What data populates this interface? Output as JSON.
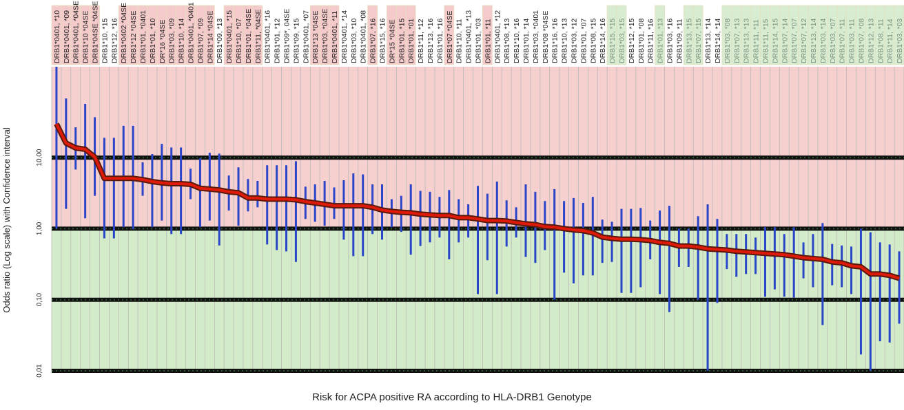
{
  "chart_data": {
    "type": "line",
    "xlabel": "Risk for ACPA positive RA according to HLA-DRB1 Genotype",
    "ylabel": "Odds ratio (Log scale)  with Confidence interval",
    "log_y": true,
    "ylim": [
      0.01,
      190
    ],
    "yticks": [
      {
        "value": 0.01,
        "label": "0,01"
      },
      {
        "value": 0.1,
        "label": "0,10"
      },
      {
        "value": 1,
        "label": "1,00"
      },
      {
        "value": 10,
        "label": "10,00"
      }
    ],
    "grid": true,
    "line_color": "#e01a0a",
    "line_outline_color": "#5a1a0a",
    "ci_color": "#2a45c8",
    "risk_color": "#f6cfcf",
    "protective_color": "#d3ebc8",
    "categories": [
      "DRB1*0401, *10",
      "DRB1*0401, *09",
      "DRB1*0401, *04SE",
      "DRB1*10 *04SE",
      "DRB1*04SE *04SE",
      "DRB1*10, *15",
      "DRB1*12, *16",
      "DRB1*0402 *04SE",
      "DRB1*12 *04SE",
      "DRB1*01, *0401",
      "DRB1*01, *10",
      "DR*16 *04SE",
      "DRB1*03, *09",
      "DRB1*10, *14",
      "DRB1*0401, *0401",
      "DRB1*07, *09",
      "DRB1*14 *04SE",
      "DRB1*09, *13",
      "DRB1*0401, *15",
      "DRB1*10, *07",
      "DRB1*01, *04SE",
      "DRB1*11, *04SE",
      "DRB1*0401, *16",
      "DRB1*01, *12",
      "DRB1*09*, 04SE",
      "DRB1*09, *15",
      "DRB1*0401, *07",
      "DRB1*13 *04SE",
      "DRB1*03, *04SE",
      "DRB1*0401, *11",
      "DRB1*0401, *14",
      "DRB1*03, *10",
      "DRB1*0401, *08",
      "DRB1*07, *16",
      "DRB1*15, *16",
      "DR*15 *04SE",
      "DRB1*01, *15",
      "DRB1*01, *01",
      "DRB1*11, *12",
      "DRB1*13, *16",
      "DRB1*01, *16",
      "DRB1*07 *04SE",
      "DRB1*10, *11",
      "DRB1*0401, *13",
      "DRB1*01, *03",
      "DRB1*01, *11",
      "DRB1*0401, *12",
      "DRB1*08, *13",
      "DRB1*10, *16",
      "DRB1*01, *14",
      "DRB1*03, *0401",
      "DRB1*08 *04SE",
      "DRB1*16, *16",
      "DRB1*10, *13",
      "DRB1*03, *12",
      "DRB1*01, *07",
      "DRB1*08, *15",
      "DRB1*14, *16",
      "DRB1*15, *15",
      "DRB1*03, *15",
      "DRB1*12, *15",
      "DRB1*01, *08",
      "DRB1*11, *16",
      "DRB1*01, *13",
      "DRB1*03, *16",
      "DRB1*09, *11",
      "DRB1*13, *15",
      "DRB1*07, *15",
      "DRB1*13, *14",
      "DRB1*14, *14",
      "DRB1*03, *08",
      "DRB1*07, *13",
      "DRB1*13, *13",
      "DRB1*11, *11",
      "DRB1*11, *15",
      "DRB1*14, *15",
      "DRB1*07, *14",
      "DRB1*07, *07",
      "DRB1*07, *12",
      "DRB1*13, *14",
      "DRB1*03, *14",
      "DRB1*03, *07",
      "DRB1*07, *11",
      "DRB1*03, *11",
      "DRB1*07, *08",
      "DRB1*12, *13",
      "DRB1*08, *11",
      "DRB1*11, *14",
      "DRB1*03, *03"
    ],
    "values": [
      29.9,
      16,
      13.7,
      13.1,
      10.2,
      5.1,
      5.1,
      5.1,
      5.1,
      4.9,
      4.6,
      4.4,
      4.3,
      4.3,
      4.2,
      3.7,
      3.6,
      3.5,
      3.3,
      3.2,
      2.7,
      2.7,
      2.6,
      2.6,
      2.6,
      2.55,
      2.4,
      2.3,
      2.2,
      2.1,
      2.1,
      2.1,
      2.1,
      2.0,
      1.83,
      1.75,
      1.7,
      1.67,
      1.6,
      1.56,
      1.53,
      1.53,
      1.43,
      1.43,
      1.37,
      1.3,
      1.3,
      1.28,
      1.22,
      1.17,
      1.14,
      1.07,
      1.05,
      1.0,
      0.96,
      0.94,
      0.87,
      0.76,
      0.73,
      0.71,
      0.71,
      0.7,
      0.68,
      0.64,
      0.62,
      0.57,
      0.57,
      0.55,
      0.52,
      0.51,
      0.5,
      0.48,
      0.47,
      0.46,
      0.45,
      0.44,
      0.43,
      0.41,
      0.39,
      0.38,
      0.37,
      0.34,
      0.33,
      0.3,
      0.29,
      0.23,
      0.23,
      0.22,
      0.2
    ],
    "ci_upper": [
      190,
      68,
      26.7,
      57,
      37,
      19,
      19,
      28,
      28,
      8.6,
      11.2,
      15.6,
      13.9,
      13.9,
      7.0,
      9.8,
      11.7,
      11.4,
      5.6,
      7.3,
      5.0,
      4.7,
      7.8,
      7.8,
      7.8,
      8.9,
      3.9,
      4.2,
      4.7,
      3.8,
      4.8,
      6.0,
      5.8,
      4.2,
      4.2,
      2.6,
      2.9,
      4.2,
      3.4,
      3.3,
      2.8,
      3.5,
      2.6,
      2.2,
      4.0,
      3.1,
      4.6,
      2.5,
      2.0,
      4.2,
      3.3,
      2.45,
      3.6,
      2.45,
      2.7,
      2.3,
      2.8,
      1.34,
      1.25,
      1.9,
      1.9,
      1.95,
      1.3,
      1.8,
      2.1,
      1.0,
      1.0,
      1.5,
      2.2,
      1.37,
      0.84,
      0.84,
      0.84,
      0.75,
      1.05,
      1.05,
      0.84,
      1.05,
      0.64,
      0.84,
      1.2,
      0.61,
      0.58,
      0.56,
      1.0,
      0.89,
      0.64,
      0.6,
      0.48
    ],
    "ci_lower": [
      1.0,
      1.9,
      6.8,
      1.4,
      2.9,
      0.73,
      0.73,
      1.05,
      0.98,
      2.9,
      1.05,
      1.3,
      0.84,
      0.84,
      2.6,
      1.05,
      1.3,
      0.58,
      1.8,
      1.1,
      1.75,
      2.0,
      0.6,
      0.5,
      0.48,
      0.34,
      1.37,
      1.25,
      1.1,
      1.37,
      0.7,
      0.41,
      0.41,
      0.84,
      0.7,
      1.05,
      0.9,
      0.43,
      0.57,
      0.64,
      0.75,
      0.37,
      0.64,
      0.75,
      0.12,
      0.36,
      0.12,
      0.56,
      0.75,
      0.4,
      0.33,
      0.5,
      0.1,
      0.24,
      0.17,
      0.22,
      0.22,
      0.33,
      0.34,
      0.125,
      0.125,
      0.15,
      0.37,
      0.12,
      0.067,
      0.29,
      0.29,
      0.1,
      0.01,
      0.09,
      0.27,
      0.21,
      0.23,
      0.23,
      0.11,
      0.14,
      0.11,
      0.107,
      0.2,
      0.15,
      0.044,
      0.16,
      0.15,
      0.12,
      0.017,
      0.01,
      0.026,
      0.025,
      0.046
    ],
    "label_box_colors": [
      "#f4caca",
      "#f4caca",
      "#f4caca",
      "#f4caca",
      "#f4caca",
      null,
      null,
      "#f4caca",
      "#f4caca",
      "#f4caca",
      "#f4caca",
      "#f4caca",
      "#f4caca",
      "#f4caca",
      "#f4caca",
      "#f4caca",
      "#f4caca",
      null,
      "#f4caca",
      "#f4caca",
      "#f4caca",
      "#f4caca",
      null,
      null,
      null,
      null,
      null,
      "#f4caca",
      "#f4caca",
      "#f4caca",
      null,
      null,
      null,
      "#f4caca",
      null,
      "#f4caca",
      "#f4caca",
      "#f4caca",
      null,
      null,
      null,
      "#f4caca",
      null,
      null,
      null,
      "#f4caca",
      null,
      null,
      null,
      null,
      null,
      null,
      null,
      null,
      null,
      null,
      null,
      null,
      "#d8ecd2",
      "#d8ecd2",
      null,
      null,
      null,
      "#d8ecd2",
      null,
      null,
      "#d8ecd2",
      "#d8ecd2",
      null,
      null,
      "#d8ecd2",
      "#d8ecd2",
      "#d8ecd2",
      "#d8ecd2",
      "#d8ecd2",
      "#d8ecd2",
      "#d8ecd2",
      "#d8ecd2",
      "#d8ecd2",
      "#d8ecd2",
      "#d8ecd2",
      "#d8ecd2",
      "#d8ecd2",
      "#d8ecd2",
      "#d8ecd2",
      "#d8ecd2",
      "#d8ecd2",
      "#d8ecd2",
      "#d8ecd2"
    ]
  }
}
